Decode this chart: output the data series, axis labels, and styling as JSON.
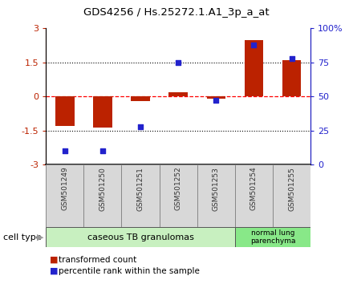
{
  "title": "GDS4256 / Hs.25272.1.A1_3p_a_at",
  "categories": [
    "GSM501249",
    "GSM501250",
    "GSM501251",
    "GSM501252",
    "GSM501253",
    "GSM501254",
    "GSM501255"
  ],
  "red_values": [
    -1.3,
    -1.35,
    -0.2,
    0.2,
    -0.1,
    2.5,
    1.6
  ],
  "blue_values": [
    10,
    10,
    28,
    75,
    47,
    88,
    78
  ],
  "ylim_left": [
    -3,
    3
  ],
  "ylim_right": [
    0,
    100
  ],
  "yticks_left": [
    -3,
    -1.5,
    0,
    1.5,
    3
  ],
  "yticks_right": [
    0,
    25,
    50,
    75,
    100
  ],
  "ytick_labels_right": [
    "0",
    "25",
    "50",
    "75",
    "100%"
  ],
  "group1_indices": [
    0,
    1,
    2,
    3,
    4
  ],
  "group2_indices": [
    5,
    6
  ],
  "group1_label": "caseous TB granulomas",
  "group2_label": "normal lung\nparenchyma",
  "cell_type_label": "cell type",
  "legend_red": "transformed count",
  "legend_blue": "percentile rank within the sample",
  "bar_width": 0.5,
  "red_color": "#bb2200",
  "blue_color": "#2222cc",
  "group1_bg": "#c8f0c0",
  "group2_bg": "#88e888",
  "label_bg": "#d8d8d8",
  "bg_color": "#d8d8d8"
}
